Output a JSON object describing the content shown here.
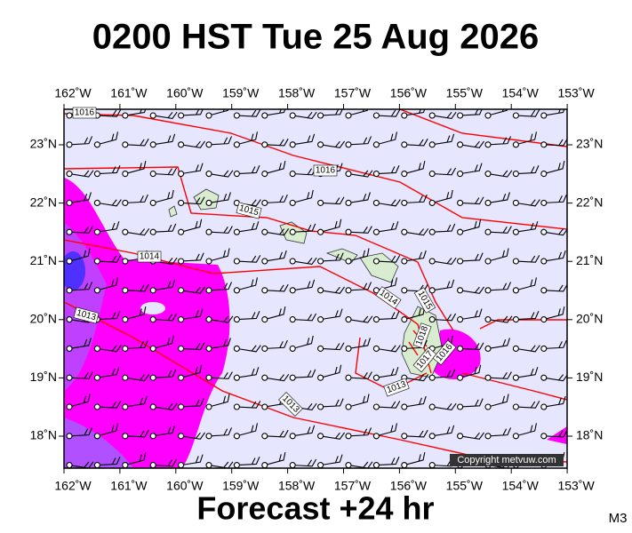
{
  "header": {
    "title": "0200 HST Tue 25 Aug 2026"
  },
  "footer": {
    "forecast": "Forecast +24 hr",
    "corner": "M3"
  },
  "map": {
    "longitude_labels": [
      "162˚W",
      "161˚W",
      "160˚W",
      "159˚W",
      "158˚W",
      "157˚W",
      "156˚W",
      "155˚W",
      "154˚W",
      "153˚W"
    ],
    "latitude_labels": [
      "23˚N",
      "22˚N",
      "21˚N",
      "20˚N",
      "19˚N",
      "18˚N"
    ],
    "isobar_labels": [
      "1016",
      "1016",
      "1015",
      "1014",
      "1013",
      "1014",
      "1015",
      "1018",
      "1017",
      "1016",
      "1013",
      "1013"
    ],
    "copyright": "Copyright metvuw.com"
  }
}
